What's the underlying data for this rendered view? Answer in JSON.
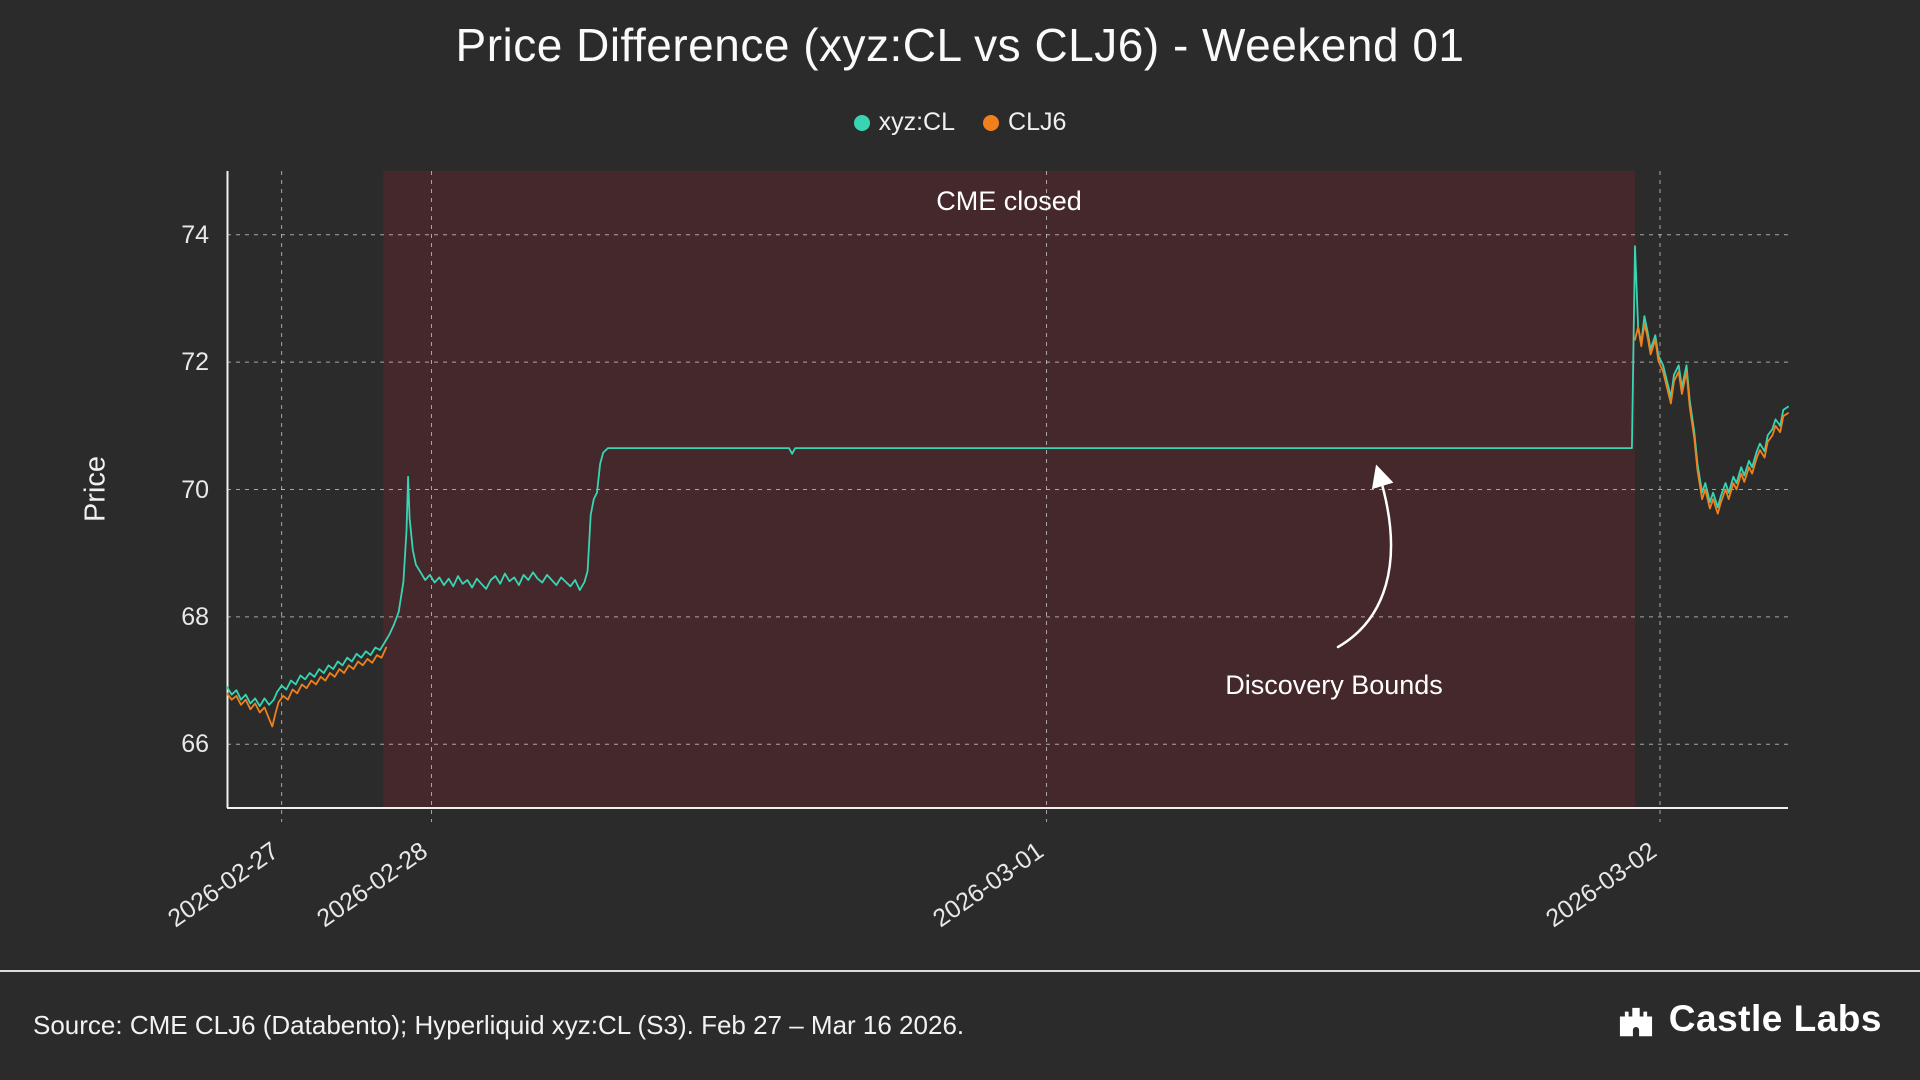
{
  "title": "Price Difference (xyz:CL vs CLJ6) - Weekend 01",
  "legend": [
    {
      "label": "xyz:CL",
      "color": "#38d5b2"
    },
    {
      "label": "CLJ6",
      "color": "#f0801c"
    }
  ],
  "footer": {
    "source": "Source: CME CLJ6 (Databento); Hyperliquid xyz:CL (S3). Feb 27 – Mar 16 2026.",
    "brand": "Castle Labs"
  },
  "chart_data": {
    "type": "line",
    "title": "Price Difference (xyz:CL vs CLJ6) - Weekend 01",
    "xlabel": "",
    "ylabel": "Price",
    "ylim": [
      65,
      75
    ],
    "yticks": [
      66,
      68,
      70,
      72,
      74
    ],
    "xticks": [
      {
        "label": "2026-02-27",
        "pos": 0.035
      },
      {
        "label": "2026-02-28",
        "pos": 0.131
      },
      {
        "label": "2026-03-01",
        "pos": 0.525
      },
      {
        "label": "2026-03-02",
        "pos": 0.918
      }
    ],
    "grid": true,
    "legend_position": "top-center",
    "shaded_region": {
      "label": "CME closed",
      "from": 0.1,
      "to": 0.902,
      "color": "#45282c"
    },
    "callout": {
      "text": "Discovery Bounds"
    },
    "series": [
      {
        "name": "xyz:CL",
        "color": "#38d5b2",
        "segments": [
          [
            [
              0.0,
              66.9
            ],
            [
              0.003,
              66.78
            ],
            [
              0.006,
              66.85
            ],
            [
              0.009,
              66.7
            ],
            [
              0.012,
              66.78
            ],
            [
              0.015,
              66.64
            ],
            [
              0.018,
              66.72
            ],
            [
              0.021,
              66.6
            ],
            [
              0.024,
              66.72
            ],
            [
              0.027,
              66.62
            ],
            [
              0.03,
              66.7
            ],
            [
              0.032,
              66.82
            ],
            [
              0.035,
              66.92
            ],
            [
              0.038,
              66.86
            ],
            [
              0.041,
              67.0
            ],
            [
              0.044,
              66.94
            ],
            [
              0.047,
              67.08
            ],
            [
              0.05,
              67.02
            ],
            [
              0.053,
              67.12
            ],
            [
              0.056,
              67.06
            ],
            [
              0.059,
              67.18
            ],
            [
              0.062,
              67.12
            ],
            [
              0.065,
              67.24
            ],
            [
              0.068,
              67.18
            ],
            [
              0.071,
              67.3
            ],
            [
              0.074,
              67.24
            ],
            [
              0.077,
              67.36
            ],
            [
              0.08,
              67.3
            ],
            [
              0.083,
              67.42
            ],
            [
              0.086,
              67.36
            ],
            [
              0.089,
              67.46
            ],
            [
              0.092,
              67.4
            ],
            [
              0.095,
              67.52
            ],
            [
              0.098,
              67.48
            ],
            [
              0.101,
              67.6
            ],
            [
              0.104,
              67.72
            ],
            [
              0.107,
              67.88
            ],
            [
              0.11,
              68.08
            ],
            [
              0.113,
              68.55
            ],
            [
              0.115,
              69.35
            ],
            [
              0.116,
              70.2
            ],
            [
              0.117,
              69.55
            ],
            [
              0.119,
              69.05
            ],
            [
              0.121,
              68.82
            ],
            [
              0.124,
              68.7
            ],
            [
              0.127,
              68.58
            ],
            [
              0.13,
              68.66
            ],
            [
              0.133,
              68.54
            ],
            [
              0.136,
              68.62
            ],
            [
              0.139,
              68.5
            ],
            [
              0.142,
              68.6
            ],
            [
              0.145,
              68.48
            ],
            [
              0.148,
              68.64
            ],
            [
              0.151,
              68.52
            ],
            [
              0.154,
              68.58
            ],
            [
              0.157,
              68.46
            ],
            [
              0.16,
              68.6
            ],
            [
              0.163,
              68.52
            ],
            [
              0.166,
              68.44
            ],
            [
              0.169,
              68.58
            ],
            [
              0.172,
              68.64
            ],
            [
              0.175,
              68.52
            ],
            [
              0.178,
              68.68
            ],
            [
              0.181,
              68.56
            ],
            [
              0.184,
              68.62
            ],
            [
              0.187,
              68.5
            ],
            [
              0.19,
              68.66
            ],
            [
              0.193,
              68.58
            ],
            [
              0.196,
              68.7
            ],
            [
              0.199,
              68.6
            ],
            [
              0.202,
              68.54
            ],
            [
              0.205,
              68.66
            ],
            [
              0.208,
              68.58
            ],
            [
              0.211,
              68.5
            ],
            [
              0.214,
              68.62
            ],
            [
              0.217,
              68.55
            ],
            [
              0.22,
              68.48
            ],
            [
              0.223,
              68.58
            ],
            [
              0.226,
              68.42
            ],
            [
              0.229,
              68.55
            ],
            [
              0.231,
              68.72
            ],
            [
              0.233,
              69.6
            ],
            [
              0.235,
              69.85
            ],
            [
              0.237,
              69.95
            ],
            [
              0.239,
              70.4
            ],
            [
              0.241,
              70.58
            ],
            [
              0.244,
              70.65
            ],
            [
              0.36,
              70.65
            ],
            [
              0.362,
              70.56
            ],
            [
              0.364,
              70.65
            ],
            [
              0.9,
              70.65
            ],
            [
              0.902,
              73.82
            ],
            [
              0.904,
              72.55
            ],
            [
              0.906,
              72.3
            ],
            [
              0.908,
              72.72
            ],
            [
              0.91,
              72.48
            ],
            [
              0.912,
              72.2
            ],
            [
              0.915,
              72.42
            ],
            [
              0.917,
              72.1
            ],
            [
              0.92,
              71.95
            ],
            [
              0.922,
              71.75
            ],
            [
              0.925,
              71.45
            ],
            [
              0.927,
              71.8
            ],
            [
              0.93,
              71.95
            ],
            [
              0.932,
              71.6
            ],
            [
              0.935,
              71.95
            ],
            [
              0.937,
              71.4
            ],
            [
              0.94,
              70.9
            ],
            [
              0.942,
              70.4
            ],
            [
              0.945,
              69.95
            ],
            [
              0.947,
              70.1
            ],
            [
              0.95,
              69.8
            ],
            [
              0.952,
              69.95
            ],
            [
              0.955,
              69.72
            ],
            [
              0.957,
              69.9
            ],
            [
              0.96,
              70.1
            ],
            [
              0.962,
              69.95
            ],
            [
              0.965,
              70.2
            ],
            [
              0.967,
              70.1
            ],
            [
              0.97,
              70.35
            ],
            [
              0.972,
              70.22
            ],
            [
              0.975,
              70.45
            ],
            [
              0.977,
              70.35
            ],
            [
              0.98,
              70.6
            ],
            [
              0.982,
              70.72
            ],
            [
              0.985,
              70.6
            ],
            [
              0.987,
              70.85
            ],
            [
              0.99,
              70.95
            ],
            [
              0.992,
              71.1
            ],
            [
              0.995,
              71.0
            ],
            [
              0.997,
              71.25
            ],
            [
              1.0,
              71.3
            ]
          ]
        ]
      },
      {
        "name": "CLJ6",
        "color": "#f0801c",
        "segments": [
          [
            [
              0.0,
              66.8
            ],
            [
              0.003,
              66.7
            ],
            [
              0.006,
              66.76
            ],
            [
              0.009,
              66.62
            ],
            [
              0.012,
              66.7
            ],
            [
              0.015,
              66.55
            ],
            [
              0.018,
              66.64
            ],
            [
              0.021,
              66.5
            ],
            [
              0.024,
              66.58
            ],
            [
              0.027,
              66.4
            ],
            [
              0.029,
              66.28
            ],
            [
              0.031,
              66.48
            ],
            [
              0.033,
              66.66
            ],
            [
              0.036,
              66.76
            ],
            [
              0.039,
              66.7
            ],
            [
              0.042,
              66.86
            ],
            [
              0.045,
              66.8
            ],
            [
              0.048,
              66.94
            ],
            [
              0.051,
              66.88
            ],
            [
              0.054,
              67.0
            ],
            [
              0.057,
              66.94
            ],
            [
              0.06,
              67.06
            ],
            [
              0.063,
              67.0
            ],
            [
              0.066,
              67.12
            ],
            [
              0.069,
              67.06
            ],
            [
              0.072,
              67.18
            ],
            [
              0.075,
              67.12
            ],
            [
              0.078,
              67.24
            ],
            [
              0.081,
              67.18
            ],
            [
              0.084,
              67.3
            ],
            [
              0.087,
              67.24
            ],
            [
              0.09,
              67.34
            ],
            [
              0.093,
              67.28
            ],
            [
              0.096,
              67.4
            ],
            [
              0.099,
              67.36
            ],
            [
              0.102,
              67.52
            ]
          ],
          [
            [
              0.902,
              72.35
            ],
            [
              0.904,
              72.55
            ],
            [
              0.906,
              72.25
            ],
            [
              0.908,
              72.6
            ],
            [
              0.91,
              72.4
            ],
            [
              0.912,
              72.12
            ],
            [
              0.915,
              72.35
            ],
            [
              0.917,
              72.02
            ],
            [
              0.92,
              71.85
            ],
            [
              0.922,
              71.65
            ],
            [
              0.925,
              71.35
            ],
            [
              0.927,
              71.7
            ],
            [
              0.93,
              71.85
            ],
            [
              0.932,
              71.5
            ],
            [
              0.935,
              71.85
            ],
            [
              0.937,
              71.3
            ],
            [
              0.94,
              70.8
            ],
            [
              0.942,
              70.3
            ],
            [
              0.945,
              69.85
            ],
            [
              0.947,
              70.0
            ],
            [
              0.95,
              69.7
            ],
            [
              0.952,
              69.85
            ],
            [
              0.955,
              69.62
            ],
            [
              0.957,
              69.8
            ],
            [
              0.96,
              70.0
            ],
            [
              0.962,
              69.85
            ],
            [
              0.965,
              70.1
            ],
            [
              0.967,
              70.0
            ],
            [
              0.97,
              70.25
            ],
            [
              0.972,
              70.12
            ],
            [
              0.975,
              70.35
            ],
            [
              0.977,
              70.25
            ],
            [
              0.98,
              70.5
            ],
            [
              0.982,
              70.62
            ],
            [
              0.985,
              70.5
            ],
            [
              0.987,
              70.75
            ],
            [
              0.99,
              70.85
            ],
            [
              0.992,
              71.0
            ],
            [
              0.995,
              70.9
            ],
            [
              0.997,
              71.15
            ],
            [
              1.0,
              71.2
            ]
          ]
        ]
      }
    ]
  }
}
